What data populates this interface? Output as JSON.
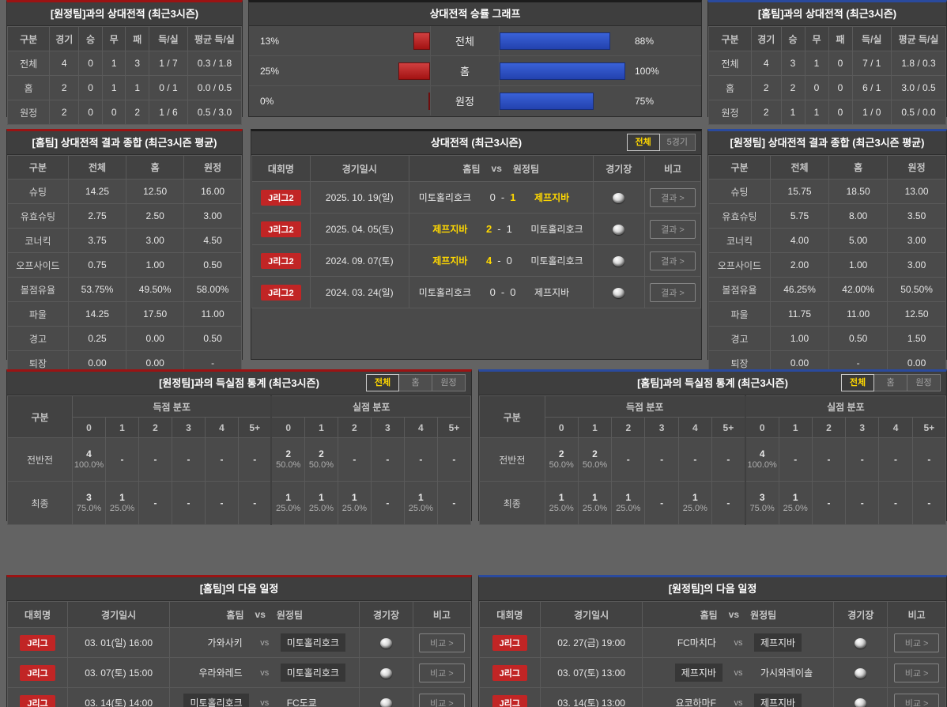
{
  "colors": {
    "accent_red": "#9b1313",
    "accent_blue": "#2a4a9e",
    "badge_red": "#c12525",
    "highlight_yellow": "#ffd800",
    "bar_red": "#b51a1a",
    "bar_blue": "#2d52c4"
  },
  "top_left": {
    "title": "[원정팀]과의 상대전적 (최근3시즌)",
    "columns": [
      "구분",
      "경기",
      "승",
      "무",
      "패",
      "득/실",
      "평균 득/실"
    ],
    "rows": [
      [
        "전체",
        "4",
        "0",
        "1",
        "3",
        "1 / 7",
        "0.3 / 1.8"
      ],
      [
        "홈",
        "2",
        "0",
        "1",
        "1",
        "0 / 1",
        "0.0 / 0.5"
      ],
      [
        "원정",
        "2",
        "0",
        "0",
        "2",
        "1 / 6",
        "0.5 / 3.0"
      ]
    ]
  },
  "chart": {
    "title": "상대전적 승률 그래프",
    "rows": [
      {
        "label": "전체",
        "left_pct": "13%",
        "left_val": 13,
        "right_pct": "88%",
        "right_val": 88
      },
      {
        "label": "홈",
        "left_pct": "25%",
        "left_val": 25,
        "right_pct": "100%",
        "right_val": 100
      },
      {
        "label": "원정",
        "left_pct": "0%",
        "left_val": 0,
        "right_pct": "75%",
        "right_val": 75
      }
    ]
  },
  "chart_data": {
    "type": "bar",
    "orientation": "horizontal",
    "title": "상대전적 승률 그래프",
    "categories": [
      "전체",
      "홈",
      "원정"
    ],
    "series": [
      {
        "name": "left_red",
        "color": "#b51a1a",
        "values": [
          13,
          25,
          0
        ]
      },
      {
        "name": "right_blue",
        "color": "#2d52c4",
        "values": [
          88,
          100,
          75
        ]
      }
    ],
    "value_labels": [
      [
        "13%",
        "88%"
      ],
      [
        "25%",
        "100%"
      ],
      [
        "0%",
        "75%"
      ]
    ],
    "xlim": [
      0,
      100
    ],
    "grid": false,
    "legend": "none"
  },
  "top_right": {
    "title": "[홈팀]과의 상대전적 (최근3시즌)",
    "columns": [
      "구분",
      "경기",
      "승",
      "무",
      "패",
      "득/실",
      "평균 득/실"
    ],
    "rows": [
      [
        "전체",
        "4",
        "3",
        "1",
        "0",
        "7 / 1",
        "1.8 / 0.3"
      ],
      [
        "홈",
        "2",
        "2",
        "0",
        "0",
        "6 / 1",
        "3.0 / 0.5"
      ],
      [
        "원정",
        "2",
        "1",
        "1",
        "0",
        "1 / 0",
        "0.5 / 0.0"
      ]
    ]
  },
  "home_summary": {
    "title": "[홈팀] 상대전적 결과 종합 (최근3시즌 평균)",
    "columns": [
      "구분",
      "전체",
      "홈",
      "원정"
    ],
    "rows": [
      [
        "슈팅",
        "14.25",
        "12.50",
        "16.00"
      ],
      [
        "유효슈팅",
        "2.75",
        "2.50",
        "3.00"
      ],
      [
        "코너킥",
        "3.75",
        "3.00",
        "4.50"
      ],
      [
        "오프사이드",
        "0.75",
        "1.00",
        "0.50"
      ],
      [
        "볼점유율",
        "53.75%",
        "49.50%",
        "58.00%"
      ],
      [
        "파울",
        "14.25",
        "17.50",
        "11.00"
      ],
      [
        "경고",
        "0.25",
        "0.00",
        "0.50"
      ],
      [
        "퇴장",
        "0.00",
        "0.00",
        "-"
      ]
    ]
  },
  "away_summary": {
    "title": "[원정팀] 상대전적 결과 종합 (최근3시즌 평균)",
    "columns": [
      "구분",
      "전체",
      "홈",
      "원정"
    ],
    "rows": [
      [
        "슈팅",
        "15.75",
        "18.50",
        "13.00"
      ],
      [
        "유효슈팅",
        "5.75",
        "8.00",
        "3.50"
      ],
      [
        "코너킥",
        "4.00",
        "5.00",
        "3.00"
      ],
      [
        "오프사이드",
        "2.00",
        "1.00",
        "3.00"
      ],
      [
        "볼점유율",
        "46.25%",
        "42.00%",
        "50.50%"
      ],
      [
        "파울",
        "11.75",
        "11.00",
        "12.50"
      ],
      [
        "경고",
        "1.00",
        "0.50",
        "1.50"
      ],
      [
        "퇴장",
        "0.00",
        "-",
        "0.00"
      ]
    ]
  },
  "h2h": {
    "title": "상대전적 (최근3시즌)",
    "tabs": [
      "전체",
      "5경기"
    ],
    "active_tab": "전체",
    "columns": {
      "league": "대회명",
      "date": "경기일시",
      "home": "홈팀",
      "vs": "vs",
      "away": "원정팀",
      "venue": "경기장",
      "note": "비고"
    },
    "result_button": "결과 >",
    "score_sep": "-",
    "rows": [
      {
        "league": "J리그2",
        "date": "2025. 10. 19(일)",
        "home": "미토홀리호크",
        "home_score": "0",
        "away_score": "1",
        "away": "제프지바",
        "winner": "away"
      },
      {
        "league": "J리그2",
        "date": "2025. 04. 05(토)",
        "home": "제프지바",
        "home_score": "2",
        "away_score": "1",
        "away": "미토홀리호크",
        "winner": "home"
      },
      {
        "league": "J리그2",
        "date": "2024. 09. 07(토)",
        "home": "제프지바",
        "home_score": "4",
        "away_score": "0",
        "away": "미토홀리호크",
        "winner": "home"
      },
      {
        "league": "J리그2",
        "date": "2024. 03. 24(일)",
        "home": "미토홀리호크",
        "home_score": "0",
        "away_score": "0",
        "away": "제프지바",
        "winner": "draw"
      }
    ]
  },
  "goal_left": {
    "title": "[원정팀]과의 득실점 통계 (최근3시즌)",
    "tabs": [
      "전체",
      "홈",
      "원정"
    ],
    "active_tab": "전체",
    "col_label": "구분",
    "groups": [
      "득점 분포",
      "실점 분포"
    ],
    "score_cols": [
      "0",
      "1",
      "2",
      "3",
      "4",
      "5+"
    ],
    "rows": [
      {
        "label": "전반전",
        "scored": [
          {
            "n": "4",
            "p": "100.0%"
          },
          {
            "n": "-",
            "p": ""
          },
          {
            "n": "-",
            "p": ""
          },
          {
            "n": "-",
            "p": ""
          },
          {
            "n": "-",
            "p": ""
          },
          {
            "n": "-",
            "p": ""
          }
        ],
        "conceded": [
          {
            "n": "2",
            "p": "50.0%"
          },
          {
            "n": "2",
            "p": "50.0%"
          },
          {
            "n": "-",
            "p": ""
          },
          {
            "n": "-",
            "p": ""
          },
          {
            "n": "-",
            "p": ""
          },
          {
            "n": "-",
            "p": ""
          }
        ]
      },
      {
        "label": "최종",
        "scored": [
          {
            "n": "3",
            "p": "75.0%"
          },
          {
            "n": "1",
            "p": "25.0%"
          },
          {
            "n": "-",
            "p": ""
          },
          {
            "n": "-",
            "p": ""
          },
          {
            "n": "-",
            "p": ""
          },
          {
            "n": "-",
            "p": ""
          }
        ],
        "conceded": [
          {
            "n": "1",
            "p": "25.0%"
          },
          {
            "n": "1",
            "p": "25.0%"
          },
          {
            "n": "1",
            "p": "25.0%"
          },
          {
            "n": "-",
            "p": ""
          },
          {
            "n": "1",
            "p": "25.0%"
          },
          {
            "n": "-",
            "p": ""
          }
        ]
      }
    ]
  },
  "goal_right": {
    "title": "[홈팀]과의 득실점 통계 (최근3시즌)",
    "tabs": [
      "전체",
      "홈",
      "원정"
    ],
    "active_tab": "전체",
    "col_label": "구분",
    "groups": [
      "득점 분포",
      "실점 분포"
    ],
    "score_cols": [
      "0",
      "1",
      "2",
      "3",
      "4",
      "5+"
    ],
    "rows": [
      {
        "label": "전반전",
        "scored": [
          {
            "n": "2",
            "p": "50.0%"
          },
          {
            "n": "2",
            "p": "50.0%"
          },
          {
            "n": "-",
            "p": ""
          },
          {
            "n": "-",
            "p": ""
          },
          {
            "n": "-",
            "p": ""
          },
          {
            "n": "-",
            "p": ""
          }
        ],
        "conceded": [
          {
            "n": "4",
            "p": "100.0%"
          },
          {
            "n": "-",
            "p": ""
          },
          {
            "n": "-",
            "p": ""
          },
          {
            "n": "-",
            "p": ""
          },
          {
            "n": "-",
            "p": ""
          },
          {
            "n": "-",
            "p": ""
          }
        ]
      },
      {
        "label": "최종",
        "scored": [
          {
            "n": "1",
            "p": "25.0%"
          },
          {
            "n": "1",
            "p": "25.0%"
          },
          {
            "n": "1",
            "p": "25.0%"
          },
          {
            "n": "-",
            "p": ""
          },
          {
            "n": "1",
            "p": "25.0%"
          },
          {
            "n": "-",
            "p": ""
          }
        ],
        "conceded": [
          {
            "n": "3",
            "p": "75.0%"
          },
          {
            "n": "1",
            "p": "25.0%"
          },
          {
            "n": "-",
            "p": ""
          },
          {
            "n": "-",
            "p": ""
          },
          {
            "n": "-",
            "p": ""
          },
          {
            "n": "-",
            "p": ""
          }
        ]
      }
    ]
  },
  "sched_home": {
    "title": "[홈팀]의 다음 일정",
    "columns": {
      "league": "대회명",
      "date": "경기일시",
      "home": "홈팀",
      "vs": "vs",
      "away": "원정팀",
      "venue": "경기장",
      "note": "비고"
    },
    "compare_button": "비교 >",
    "vs_label": "vs",
    "rows": [
      {
        "league": "J리그",
        "date": "03. 01(일) 16:00",
        "home": "가와사키",
        "away": "미토홀리호크",
        "highlight": "away"
      },
      {
        "league": "J리그",
        "date": "03. 07(토) 15:00",
        "home": "우라와레드",
        "away": "미토홀리호크",
        "highlight": "away"
      },
      {
        "league": "J리그",
        "date": "03. 14(토) 14:00",
        "home": "미토홀리호크",
        "away": "FC도쿄",
        "highlight": "home"
      }
    ]
  },
  "sched_away": {
    "title": "[원정팀]의 다음 일정",
    "columns": {
      "league": "대회명",
      "date": "경기일시",
      "home": "홈팀",
      "vs": "vs",
      "away": "원정팀",
      "venue": "경기장",
      "note": "비고"
    },
    "compare_button": "비교 >",
    "vs_label": "vs",
    "rows": [
      {
        "league": "J리그",
        "date": "02. 27(금) 19:00",
        "home": "FC마치다",
        "away": "제프지바",
        "highlight": "away"
      },
      {
        "league": "J리그",
        "date": "03. 07(토) 13:00",
        "home": "제프지바",
        "away": "가시와레이솔",
        "highlight": "home"
      },
      {
        "league": "J리그",
        "date": "03. 14(토) 13:00",
        "home": "요코하마F",
        "away": "제프지바",
        "highlight": "away"
      }
    ]
  }
}
